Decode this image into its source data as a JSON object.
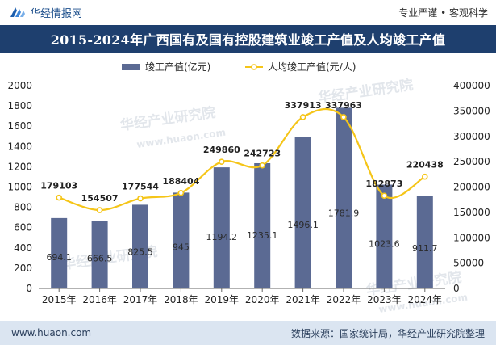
{
  "header": {
    "brand": "华经情报网",
    "tagline": "专业严谨 • 客观科学",
    "title": "2015-2024年广西国有及国有控股建筑业竣工产值及人均竣工产值"
  },
  "watermark": {
    "text": "华经产业研究院",
    "subtext": "www.huaon.com"
  },
  "footer": {
    "website": "www.huaon.com",
    "source": "数据来源：国家统计局，华经产业研究院整理"
  },
  "colors": {
    "bar": "#5b6a93",
    "line": "#f5c518",
    "title_bg": "#1e3f6e",
    "footer_bg": "#dbe5f1"
  },
  "chart_data": {
    "type": "bar",
    "categories": [
      "2015年",
      "2016年",
      "2017年",
      "2018年",
      "2019年",
      "2020年",
      "2021年",
      "2022年",
      "2023年",
      "2024年"
    ],
    "series": [
      {
        "name": "竣工产值(亿元)",
        "type": "bar",
        "axis": "left",
        "values": [
          694.1,
          666.5,
          825.5,
          945,
          1194.2,
          1235.1,
          1496.1,
          1781.9,
          1023.6,
          911.7
        ],
        "labels": [
          "694.1",
          "666.5",
          "825.5",
          "945",
          "1194.2",
          "1235.1",
          "1496.1",
          "1781.9",
          "1023.6",
          "911.7"
        ]
      },
      {
        "name": "人均竣工产值(元/人)",
        "type": "line",
        "axis": "right",
        "smooth": true,
        "values": [
          179103,
          154507,
          177544,
          188404,
          249860,
          242723,
          337913,
          337963,
          182873,
          220438
        ],
        "labels": [
          "179103",
          "154507",
          "177544",
          "188404",
          "249860",
          "242723",
          "337913",
          "337963",
          "182873",
          "220438"
        ]
      }
    ],
    "y_left": {
      "min": 0,
      "max": 2000,
      "ticks": [
        "0",
        "200",
        "400",
        "600",
        "800",
        "1000",
        "1200",
        "1400",
        "1600",
        "1800",
        "2000"
      ]
    },
    "y_right": {
      "min": 0,
      "max": 400000,
      "ticks": [
        "0",
        "50000",
        "100000",
        "150000",
        "200000",
        "250000",
        "300000",
        "350000",
        "400000"
      ]
    },
    "legend_position": "top-center",
    "grid": false
  }
}
